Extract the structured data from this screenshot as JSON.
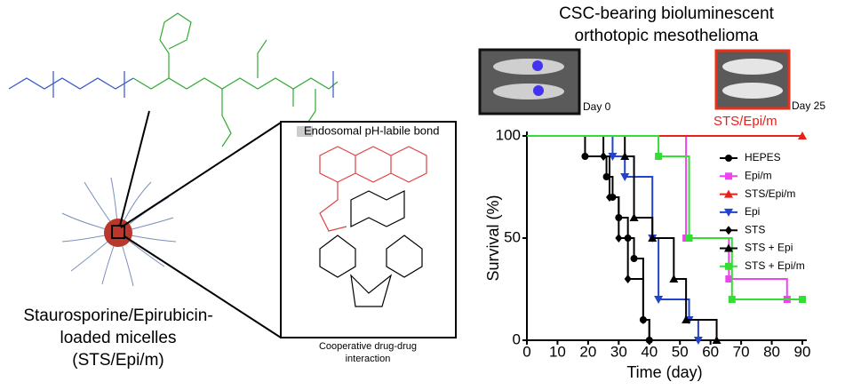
{
  "chart_data": {
    "type": "line",
    "step": true,
    "xlabel": "Time (day)",
    "ylabel": "Survival (%)",
    "xlim": [
      0,
      90
    ],
    "xticks": [
      0,
      10,
      20,
      30,
      40,
      50,
      60,
      70,
      80,
      90
    ],
    "ylim": [
      0,
      100
    ],
    "yticks": [
      0,
      50,
      100
    ],
    "legend": "upper right",
    "series": [
      {
        "name": "HEPES",
        "color": "#000000",
        "marker": "circle",
        "x": [
          0,
          19,
          26,
          28,
          30,
          33,
          35,
          38,
          40
        ],
        "values": [
          100,
          90,
          80,
          70,
          60,
          50,
          40,
          10,
          0
        ]
      },
      {
        "name": "Epi/m",
        "color": "#ee44ee",
        "marker": "square",
        "x": [
          0,
          52,
          66,
          85
        ],
        "values": [
          100,
          50,
          30,
          20
        ]
      },
      {
        "name": "STS/Epi/m",
        "color": "#e8201a",
        "marker": "triangle",
        "x": [
          0,
          90
        ],
        "values": [
          100,
          100
        ]
      },
      {
        "name": "Epi",
        "color": "#2244cc",
        "marker": "triangle-down",
        "x": [
          0,
          28,
          32,
          41,
          43,
          53,
          56
        ],
        "values": [
          100,
          90,
          80,
          50,
          20,
          10,
          0
        ]
      },
      {
        "name": "STS",
        "color": "#000000",
        "marker": "diamond",
        "x": [
          0,
          25,
          27,
          30,
          33,
          38,
          40
        ],
        "values": [
          100,
          90,
          70,
          50,
          30,
          10,
          0
        ]
      },
      {
        "name": "STS + Epi",
        "color": "#000000",
        "marker": "triangle",
        "x": [
          0,
          32,
          35,
          41,
          48,
          52,
          62
        ],
        "values": [
          100,
          90,
          60,
          50,
          30,
          10,
          0
        ]
      },
      {
        "name": "STS + Epi/m",
        "color": "#33dd33",
        "marker": "square",
        "x": [
          0,
          43,
          53,
          67,
          90
        ],
        "values": [
          100,
          90,
          50,
          20,
          20
        ]
      }
    ]
  },
  "figure": {
    "heading": [
      "CSC-bearing bioluminescent",
      "orthotopic mesothelioma"
    ],
    "imaging": {
      "day0": "Day 0",
      "day25": "Day 25",
      "treatment": "STS/Epi/m"
    },
    "micelle_label": [
      "Staurosporine/Epirubicin-",
      "loaded micelles",
      "(STS/Epi/m)"
    ],
    "structure": {
      "bond_label": "Endosomal pH-labile bond",
      "caption": [
        "Cooperative drug-drug",
        "interaction"
      ]
    }
  }
}
